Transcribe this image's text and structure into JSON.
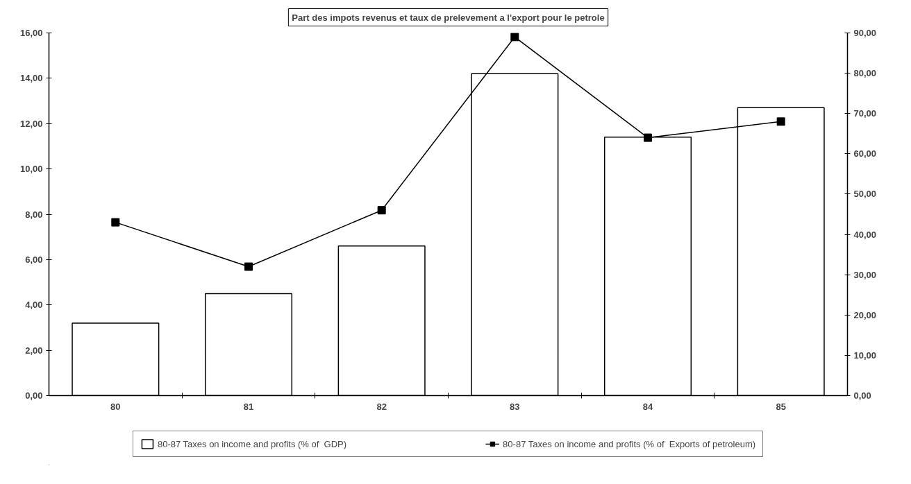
{
  "chart_data": {
    "type": "bar",
    "title": "Part des impots revenus et taux de prelevement a l'export pour le petrole",
    "categories": [
      "80",
      "81",
      "82",
      "83",
      "84",
      "85"
    ],
    "series": [
      {
        "name": "80-87 Taxes on income and profits (% of  GDP)",
        "color": "#ffffff",
        "values": [
          3.2,
          4.5,
          6.6,
          14.2,
          11.4,
          12.7
        ]
      },
      {
        "name": "80-87 Taxes on income and profits (% of  Exports of petroleum)",
        "type": "line",
        "axis": "y2",
        "marker": "square",
        "color": "#000000",
        "values": [
          43,
          32,
          46,
          89,
          64,
          68
        ]
      }
    ],
    "ylim": [
      0,
      16
    ],
    "yticks": [
      {
        "value": 0,
        "label": "0,00"
      },
      {
        "value": 2,
        "label": "2,00"
      },
      {
        "value": 4,
        "label": "4,00"
      },
      {
        "value": 6,
        "label": "6,00"
      },
      {
        "value": 8,
        "label": "8,00"
      },
      {
        "value": 10,
        "label": "10,00"
      },
      {
        "value": 12,
        "label": "12,00"
      },
      {
        "value": 14,
        "label": "14,00"
      },
      {
        "value": 16,
        "label": "16,00"
      }
    ],
    "y2lim": [
      0,
      90
    ],
    "y2ticks": [
      {
        "value": 0,
        "label": "0,00"
      },
      {
        "value": 10,
        "label": "10,00"
      },
      {
        "value": 20,
        "label": "20,00"
      },
      {
        "value": 30,
        "label": "30,00"
      },
      {
        "value": 40,
        "label": "40,00"
      },
      {
        "value": 50,
        "label": "50,00"
      },
      {
        "value": 60,
        "label": "60,00"
      },
      {
        "value": 70,
        "label": "70,00"
      },
      {
        "value": 80,
        "label": "80,00"
      },
      {
        "value": 90,
        "label": "90,00"
      }
    ],
    "grid": false,
    "legend": "bottom"
  }
}
